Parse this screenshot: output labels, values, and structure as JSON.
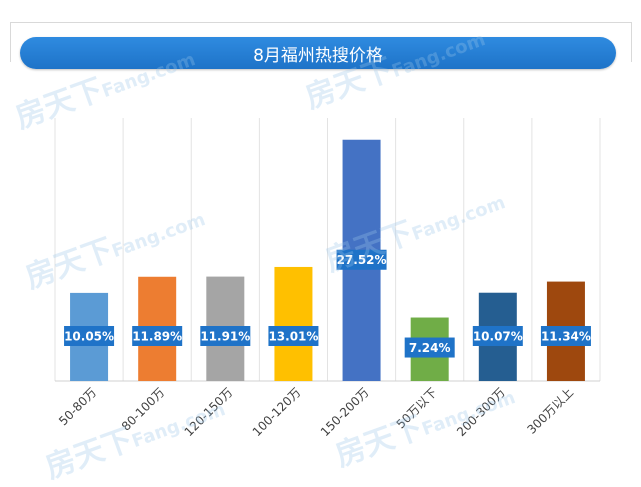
{
  "header": {
    "title": "8月福州热搜价格"
  },
  "watermark": {
    "cn": "房天下",
    "en": "Fang.com"
  },
  "chart_data": {
    "type": "bar",
    "title": "8月福州热搜价格",
    "categories": [
      "50-80万",
      "80-100万",
      "120-150万",
      "100-120万",
      "150-200万",
      "50万以下",
      "200-300万",
      "300万以上"
    ],
    "values": [
      10.05,
      11.89,
      11.91,
      13.01,
      27.52,
      7.24,
      10.07,
      11.34
    ],
    "value_labels": [
      "10.05%",
      "11.89%",
      "11.91%",
      "13.01%",
      "27.52%",
      "7.24%",
      "10.07%",
      "11.34%"
    ],
    "colors": [
      "#5b9bd5",
      "#ed7d31",
      "#a5a5a5",
      "#ffc000",
      "#4472c4",
      "#70ad47",
      "#255e91",
      "#9e480e"
    ],
    "label_color": "#1f73c8",
    "ylim": [
      0,
      30
    ],
    "grid": "vertical-separators"
  }
}
